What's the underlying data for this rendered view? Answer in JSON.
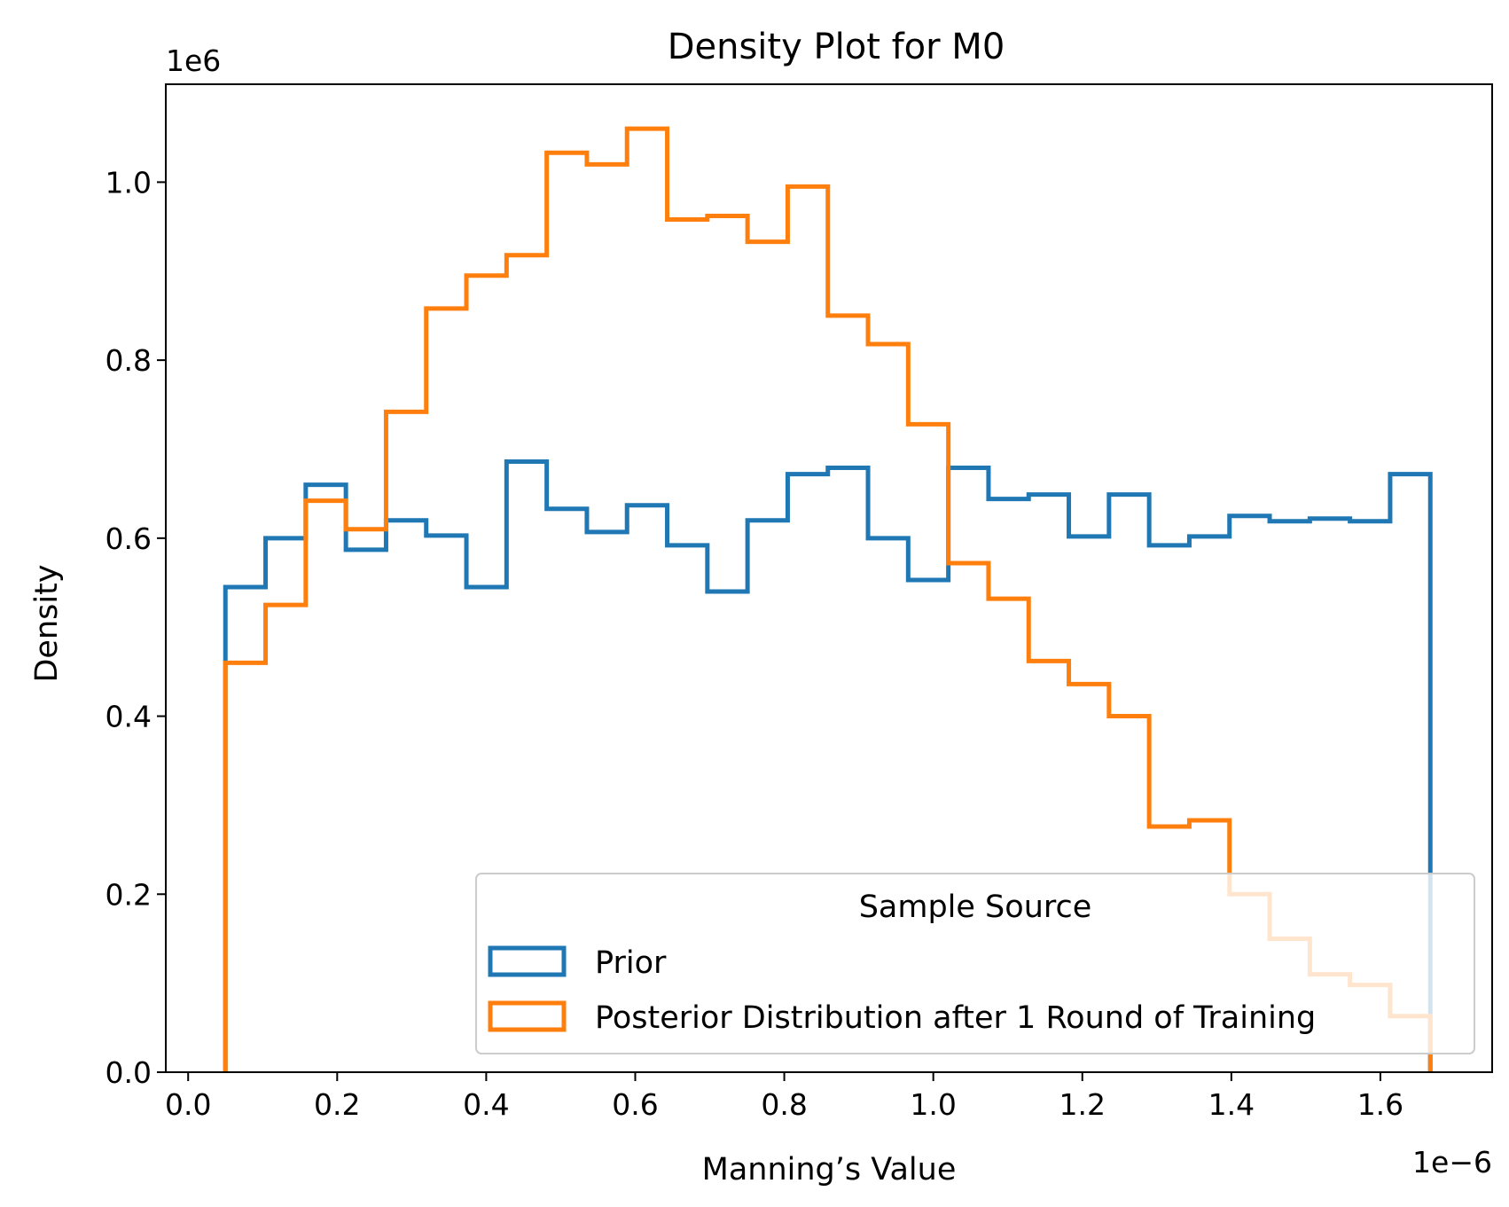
{
  "chart_data": {
    "type": "histogram-step",
    "title": "Density Plot for M0",
    "xlabel": "Manning’s Value",
    "ylabel": "Density",
    "x_offset_label": "1e−6",
    "y_offset_label": "1e6",
    "xlim": [
      -0.03,
      1.75
    ],
    "ylim": [
      0,
      1.11
    ],
    "x_ticks": [
      0.0,
      0.2,
      0.4,
      0.6,
      0.8,
      1.0,
      1.2,
      1.4,
      1.6
    ],
    "x_tick_labels": [
      "0.0",
      "0.2",
      "0.4",
      "0.6",
      "0.8",
      "1.0",
      "1.2",
      "1.4",
      "1.6"
    ],
    "y_ticks": [
      0.0,
      0.2,
      0.4,
      0.6,
      0.8,
      1.0
    ],
    "y_tick_labels": [
      "0.0",
      "0.2",
      "0.4",
      "0.6",
      "0.8",
      "1.0"
    ],
    "grid": false,
    "legend": {
      "title": "Sample Source",
      "placement": "lower right"
    },
    "bin_edges": [
      0.05,
      0.1039,
      0.1578,
      0.2117,
      0.2656,
      0.3195,
      0.3734,
      0.4273,
      0.4812,
      0.5351,
      0.589,
      0.6429,
      0.6968,
      0.7507,
      0.8046,
      0.8585,
      0.9124,
      0.9663,
      1.0202,
      1.0741,
      1.128,
      1.1819,
      1.2358,
      1.2897,
      1.3436,
      1.3975,
      1.4514,
      1.5053,
      1.5592,
      1.6131,
      1.667
    ],
    "series": [
      {
        "name": "Prior",
        "color": "#1f77b4",
        "values": [
          0.545,
          0.6,
          0.66,
          0.587,
          0.62,
          0.603,
          0.545,
          0.686,
          0.633,
          0.607,
          0.637,
          0.592,
          0.54,
          0.62,
          0.672,
          0.679,
          0.6,
          0.553,
          0.679,
          0.644,
          0.649,
          0.602,
          0.649,
          0.592,
          0.602,
          0.625,
          0.619,
          0.622,
          0.619,
          0.672
        ]
      },
      {
        "name": "Posterior Distribution after 1 Round of Training",
        "color": "#ff7f0e",
        "values": [
          0.46,
          0.525,
          0.642,
          0.61,
          0.742,
          0.858,
          0.895,
          0.918,
          1.033,
          1.02,
          1.06,
          0.958,
          0.962,
          0.933,
          0.995,
          0.85,
          0.818,
          0.728,
          0.572,
          0.532,
          0.462,
          0.436,
          0.4,
          0.276,
          0.283,
          0.2,
          0.15,
          0.11,
          0.098,
          0.063
        ]
      }
    ]
  }
}
